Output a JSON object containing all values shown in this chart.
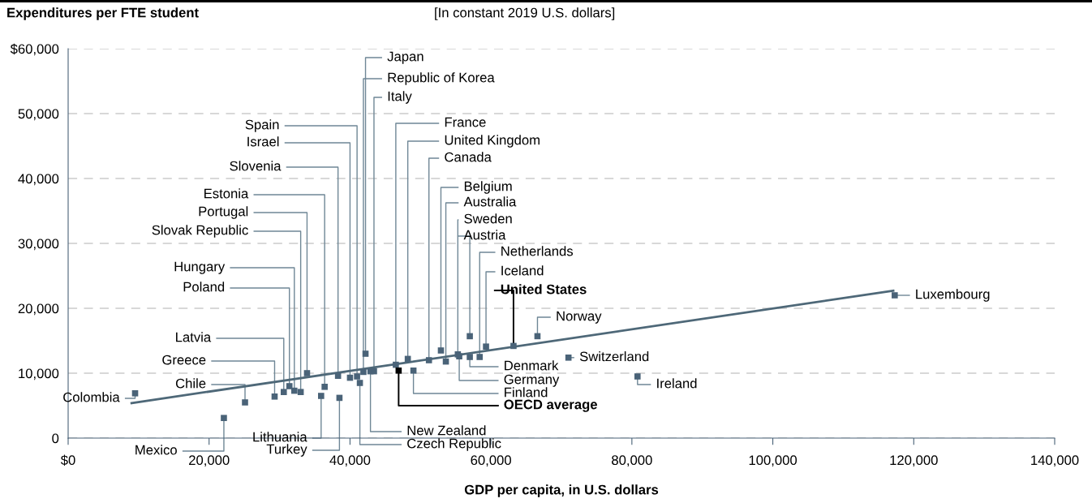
{
  "chart_data": {
    "type": "scatter",
    "title": "Expenditures per FTE student",
    "subtitle": "[In constant 2019 U.S. dollars]",
    "xlabel": "GDP per capita, in U.S. dollars",
    "xlim": [
      0,
      140000
    ],
    "xticks": [
      {
        "value": 0,
        "label": "$0"
      },
      {
        "value": 20000,
        "label": "20,000"
      },
      {
        "value": 40000,
        "label": "40,000"
      },
      {
        "value": 60000,
        "label": "60,000"
      },
      {
        "value": 80000,
        "label": "80,000"
      },
      {
        "value": 100000,
        "label": "100,000"
      },
      {
        "value": 120000,
        "label": "120,000"
      },
      {
        "value": 140000,
        "label": "140,000"
      }
    ],
    "ylim": [
      0,
      60000
    ],
    "yticks": [
      {
        "value": 0,
        "label": "0"
      },
      {
        "value": 10000,
        "label": "10,000"
      },
      {
        "value": 20000,
        "label": "20,000"
      },
      {
        "value": 30000,
        "label": "30,000"
      },
      {
        "value": 40000,
        "label": "40,000"
      },
      {
        "value": 50000,
        "label": "50,000"
      },
      {
        "value": 60000,
        "label": "$60,000"
      }
    ],
    "grid": "y",
    "marker": "square",
    "series": [
      {
        "x": [
          9500,
          22100,
          25100,
          29300,
          30600,
          35900,
          31400,
          32100,
          33000,
          33900,
          38500,
          36400,
          38300,
          40000,
          41000,
          41400,
          42200,
          41900,
          42900,
          43400,
          46500,
          46900,
          49000,
          48200,
          51200,
          52900,
          53600,
          55300,
          55500,
          57000,
          57000,
          58400,
          59300,
          63200,
          66600,
          71000,
          80800,
          117300
        ],
        "values": [
          6900,
          3100,
          5500,
          6400,
          7100,
          6500,
          8000,
          7300,
          7100,
          10000,
          6200,
          7900,
          9600,
          9300,
          9500,
          8500,
          13000,
          10200,
          10300,
          10300,
          11300,
          10400,
          10400,
          12200,
          12000,
          13500,
          11800,
          12900,
          12600,
          15700,
          12500,
          12500,
          14100,
          14200,
          15700,
          12400,
          9500,
          22000
        ],
        "colors": [
          "#4a6378",
          "#4a6378",
          "#4a6378",
          "#4a6378",
          "#4a6378",
          "#4a6378",
          "#4a6378",
          "#4a6378",
          "#4a6378",
          "#4a6378",
          "#4a6378",
          "#4a6378",
          "#4a6378",
          "#4a6378",
          "#4a6378",
          "#4a6378",
          "#4a6378",
          "#4a6378",
          "#4a6378",
          "#4a6378",
          "#4a6378",
          "#000000",
          "#4a6378",
          "#4a6378",
          "#4a6378",
          "#4a6378",
          "#4a6378",
          "#4a6378",
          "#4a6378",
          "#4a6378",
          "#4a6378",
          "#4a6378",
          "#4a6378",
          "#4a6378",
          "#4a6378",
          "#4a6378",
          "#4a6378",
          "#4a6378"
        ]
      },
      {
        "type": "line",
        "x": [
          9000,
          117100
        ],
        "values": [
          5400,
          22700
        ],
        "color": "#4e6878",
        "marker": "none"
      }
    ],
    "annotations": [
      {
        "text": "Colombia",
        "x": 9500,
        "y": 6900
      },
      {
        "text": "Mexico",
        "x": 22100,
        "y": 3100
      },
      {
        "text": "Chile",
        "x": 25100,
        "y": 5500
      },
      {
        "text": "Greece",
        "x": 29300,
        "y": 6400
      },
      {
        "text": "Latvia",
        "x": 30600,
        "y": 7100
      },
      {
        "text": "Lithuania",
        "x": 35900,
        "y": 6500
      },
      {
        "text": "Poland",
        "x": 31400,
        "y": 8000
      },
      {
        "text": "Hungary",
        "x": 32100,
        "y": 7300
      },
      {
        "text": "Slovak Republic",
        "x": 33000,
        "y": 7100
      },
      {
        "text": "Portugal",
        "x": 33900,
        "y": 10000
      },
      {
        "text": "Turkey",
        "x": 38500,
        "y": 6200
      },
      {
        "text": "Estonia",
        "x": 36400,
        "y": 7900
      },
      {
        "text": "Slovenia",
        "x": 38300,
        "y": 9600
      },
      {
        "text": "Israel",
        "x": 40000,
        "y": 9300
      },
      {
        "text": "Spain",
        "x": 41000,
        "y": 9500
      },
      {
        "text": "Czech Republic",
        "x": 41400,
        "y": 8500
      },
      {
        "text": "Japan",
        "x": 42200,
        "y": 13000
      },
      {
        "text": "Republic of Korea",
        "x": 41900,
        "y": 10200
      },
      {
        "text": "New Zealand",
        "x": 42900,
        "y": 10300
      },
      {
        "text": "Italy",
        "x": 43400,
        "y": 10300
      },
      {
        "text": "France",
        "x": 46500,
        "y": 11300
      },
      {
        "text": "OECD average",
        "x": 46900,
        "y": 10400
      },
      {
        "text": "Finland",
        "x": 49000,
        "y": 10400
      },
      {
        "text": "United Kingdom",
        "x": 48200,
        "y": 12200
      },
      {
        "text": "Canada",
        "x": 51200,
        "y": 12000
      },
      {
        "text": "Belgium",
        "x": 52900,
        "y": 13500
      },
      {
        "text": "Australia",
        "x": 53600,
        "y": 11800
      },
      {
        "text": "Sweden",
        "x": 55300,
        "y": 12900
      },
      {
        "text": "Germany",
        "x": 55500,
        "y": 12600
      },
      {
        "text": "Austria",
        "x": 57000,
        "y": 15700
      },
      {
        "text": "Denmark",
        "x": 57000,
        "y": 12500
      },
      {
        "text": "Netherlands",
        "x": 58400,
        "y": 12500
      },
      {
        "text": "Iceland",
        "x": 59300,
        "y": 14100
      },
      {
        "text": "United States",
        "x": 63200,
        "y": 14200
      },
      {
        "text": "Norway",
        "x": 66600,
        "y": 15700
      },
      {
        "text": "Switzerland",
        "x": 71000,
        "y": 12400
      },
      {
        "text": "Ireland",
        "x": 80800,
        "y": 9500
      },
      {
        "text": "Luxembourg",
        "x": 117300,
        "y": 22000
      }
    ]
  }
}
